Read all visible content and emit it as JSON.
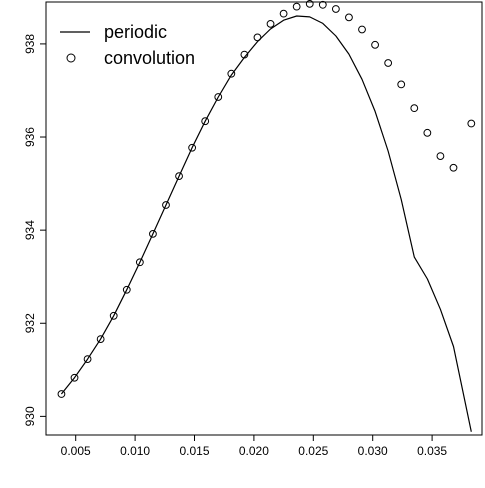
{
  "chart_data": {
    "type": "line",
    "title": "",
    "xlabel": "",
    "ylabel": "",
    "xlim": [
      0.0025,
      0.0392
    ],
    "ylim": [
      929.6,
      938.9
    ],
    "x_ticks": [
      "0.005",
      "0.010",
      "0.015",
      "0.020",
      "0.025",
      "0.030",
      "0.035"
    ],
    "y_ticks": [
      "930",
      "932",
      "934",
      "936",
      "938"
    ],
    "grid": false,
    "legend_position": "top-left",
    "series": [
      {
        "name": "periodic",
        "style": "line",
        "color": "#000000",
        "x": [
          0.0038,
          0.0049,
          0.006,
          0.0071,
          0.0082,
          0.0093,
          0.0104,
          0.0115,
          0.0126,
          0.0137,
          0.0148,
          0.0159,
          0.017,
          0.0181,
          0.0192,
          0.0203,
          0.0214,
          0.0225,
          0.0236,
          0.0247,
          0.0258,
          0.0269,
          0.028,
          0.0291,
          0.0302,
          0.0313,
          0.0324,
          0.0335,
          0.0346,
          0.0357,
          0.0368,
          0.0383
        ],
        "y": [
          930.48,
          930.83,
          931.23,
          931.66,
          932.16,
          932.72,
          933.31,
          933.92,
          934.54,
          935.16,
          935.77,
          936.34,
          936.86,
          937.33,
          937.71,
          938.05,
          938.32,
          938.51,
          938.6,
          938.58,
          938.44,
          938.17,
          937.78,
          937.24,
          936.55,
          935.7,
          934.66,
          933.42,
          932.95,
          932.3,
          931.5,
          929.67
        ]
      },
      {
        "name": "convolution",
        "style": "points",
        "color": "#000000",
        "x": [
          0.0038,
          0.0049,
          0.006,
          0.0071,
          0.0082,
          0.0093,
          0.0104,
          0.0115,
          0.0126,
          0.0137,
          0.0148,
          0.0159,
          0.017,
          0.0181,
          0.0192,
          0.0203,
          0.0214,
          0.0225,
          0.0236,
          0.0247,
          0.0258,
          0.0269,
          0.028,
          0.0291,
          0.0302,
          0.0313,
          0.0324,
          0.0335,
          0.0346,
          0.0357,
          0.0368,
          0.0383
        ],
        "y": [
          930.48,
          930.83,
          931.23,
          931.66,
          932.16,
          932.72,
          933.31,
          933.92,
          934.54,
          935.16,
          935.77,
          936.34,
          936.86,
          937.36,
          937.77,
          938.14,
          938.43,
          938.65,
          938.8,
          938.86,
          938.84,
          938.75,
          938.57,
          938.31,
          937.98,
          937.59,
          937.13,
          936.62,
          936.09,
          935.59,
          935.34,
          936.29
        ]
      }
    ]
  }
}
